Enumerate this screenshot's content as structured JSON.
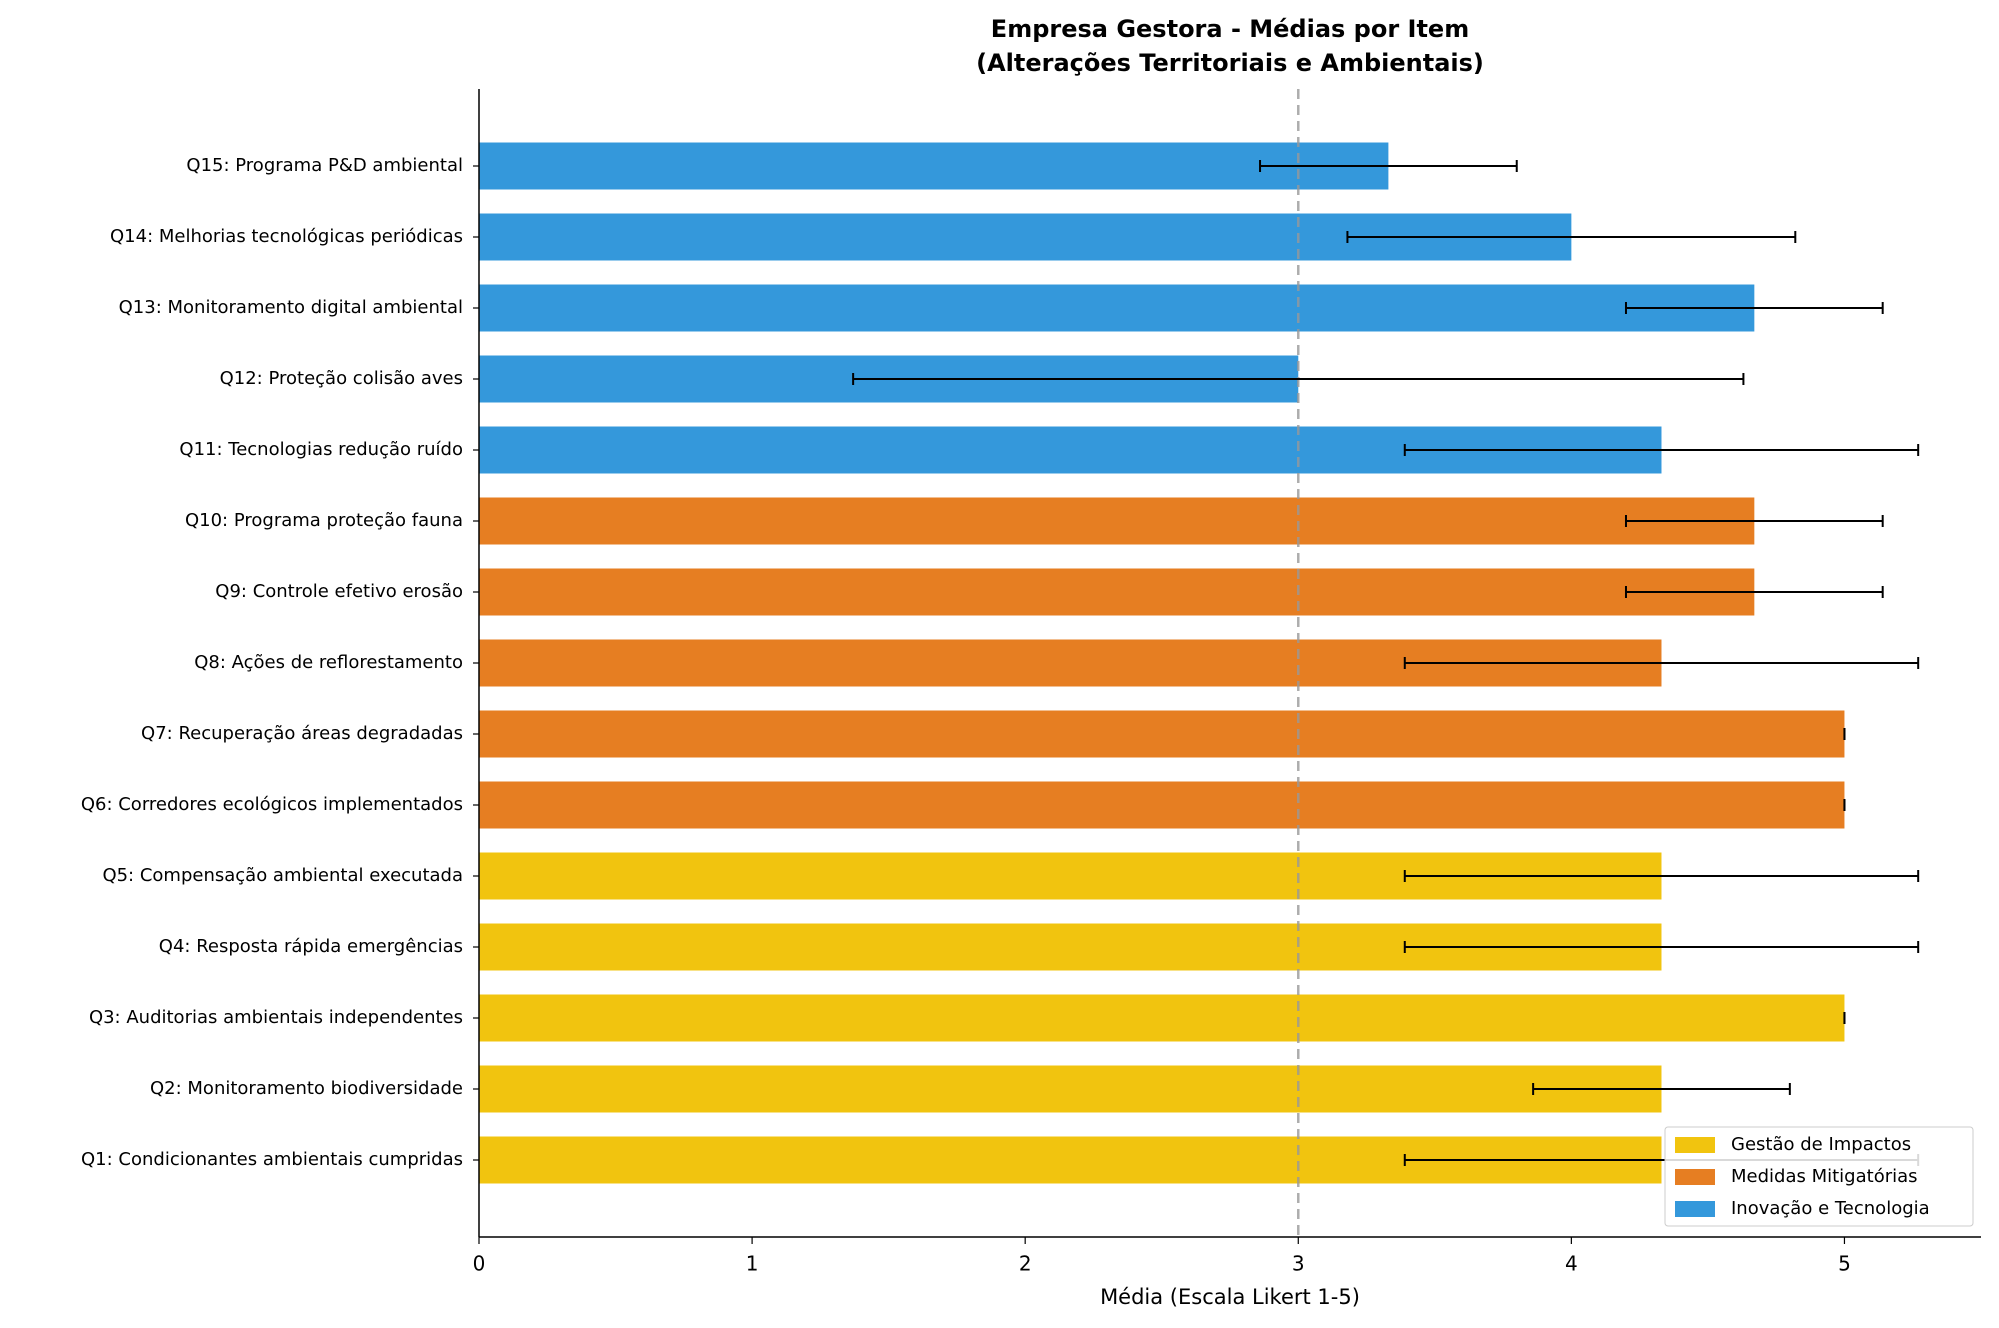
{
  "chart_data": {
    "type": "bar",
    "orientation": "horizontal",
    "title": "Empresa Gestora - Médias por Item",
    "subtitle": "(Alterações Territoriais e Ambientais)",
    "x_label": "Média (Escala Likert 1-5)",
    "categories": [
      "Q1: Condicionantes ambientais cumpridas",
      "Q2: Monitoramento biodiversidade",
      "Q3: Auditorias ambientais independentes",
      "Q4: Resposta rápida emergências",
      "Q5: Compensação ambiental executada",
      "Q6: Corredores ecológicos implementados",
      "Q7: Recuperação áreas degradadas",
      "Q8: Ações de reflorestamento",
      "Q9: Controle efetivo erosão",
      "Q10: Programa proteção fauna",
      "Q11: Tecnologias redução ruído",
      "Q12: Proteção colisão aves",
      "Q13: Monitoramento digital ambiental",
      "Q14: Melhorias tecnológicas periódicas",
      "Q15: Programa P&D ambiental"
    ],
    "series": [
      {
        "name": "Gestão de Impactos",
        "color": "#f1c40f",
        "values": [
          4.33,
          4.33,
          5,
          4.33,
          4.33,
          null,
          null,
          null,
          null,
          null,
          null,
          null,
          null,
          null,
          null
        ],
        "errors": [
          0.94,
          0.47,
          0,
          0.94,
          0.94,
          null,
          null,
          null,
          null,
          null,
          null,
          null,
          null,
          null,
          null
        ]
      },
      {
        "name": "Medidas Mitigatórias",
        "color": "#e67e22",
        "values": [
          null,
          null,
          null,
          null,
          null,
          5,
          5,
          4.33,
          4.67,
          4.67,
          null,
          null,
          null,
          null,
          null
        ],
        "errors": [
          null,
          null,
          null,
          null,
          null,
          0,
          0,
          0.94,
          0.47,
          0.47,
          null,
          null,
          null,
          null,
          null
        ]
      },
      {
        "name": "Inovação e Tecnologia",
        "color": "#3498db",
        "values": [
          null,
          null,
          null,
          null,
          null,
          null,
          null,
          null,
          null,
          null,
          4.33,
          3,
          4.67,
          4,
          3.33
        ],
        "errors": [
          null,
          null,
          null,
          null,
          null,
          null,
          null,
          null,
          null,
          null,
          0.94,
          1.63,
          0.47,
          0.82,
          0.47
        ]
      }
    ],
    "reference_line": 3,
    "xlim": [
      0,
      5.5
    ],
    "xticks": [
      0,
      1,
      2,
      3,
      4,
      5
    ],
    "legend": "lower right"
  }
}
